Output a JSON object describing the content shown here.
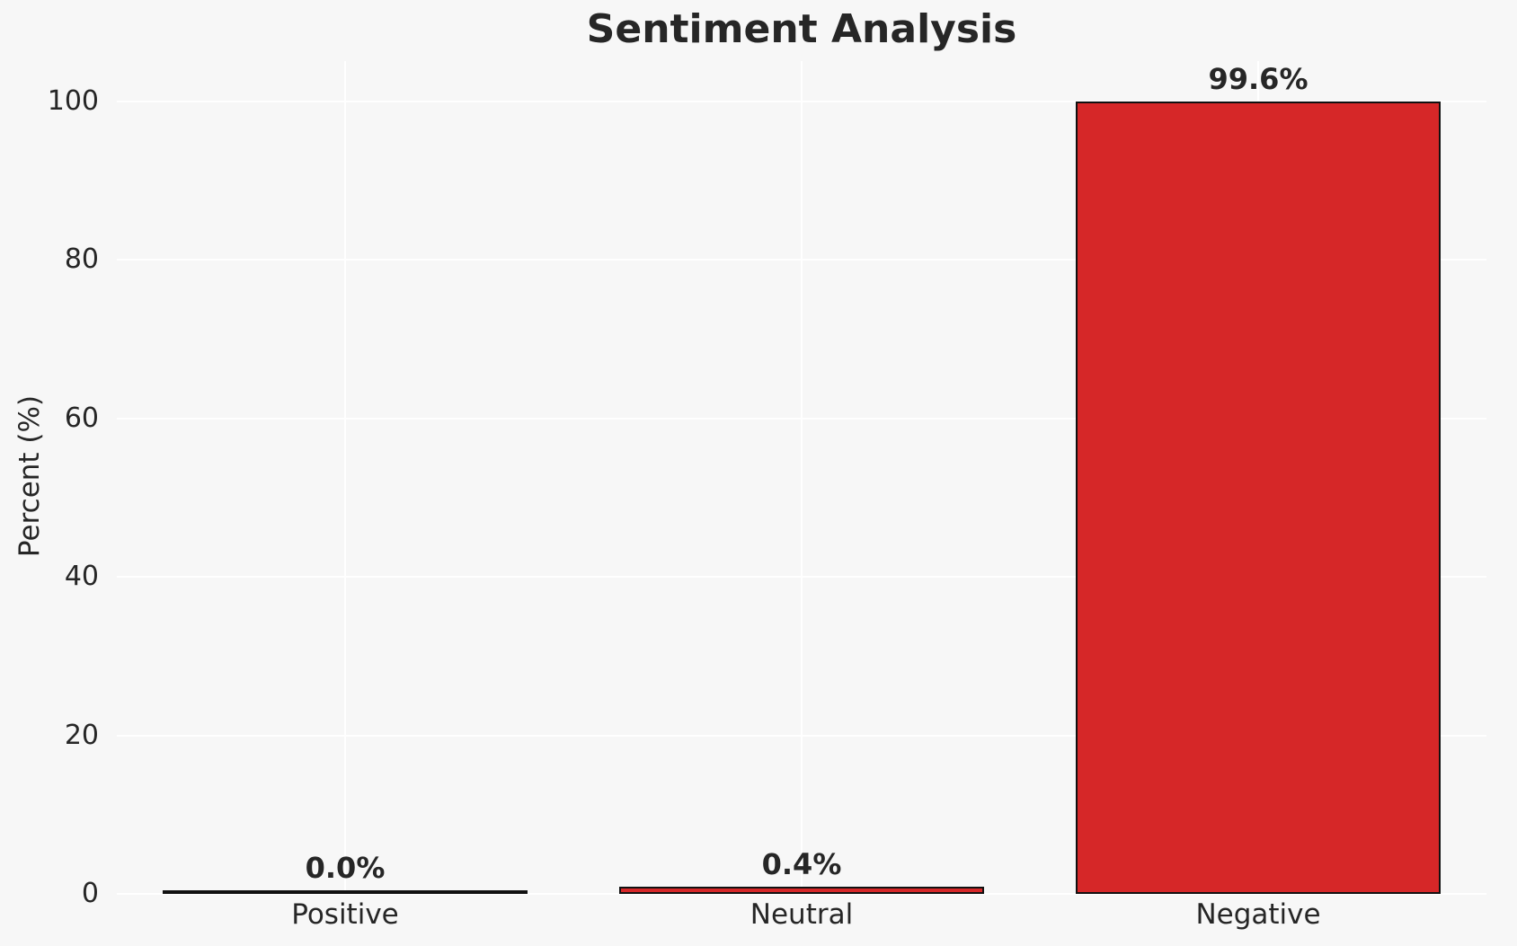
{
  "chart_data": {
    "type": "bar",
    "title": "Sentiment Analysis",
    "xlabel": "",
    "ylabel": "Percent (%)",
    "categories": [
      "Positive",
      "Neutral",
      "Negative"
    ],
    "values": [
      0.0,
      0.4,
      99.6
    ],
    "value_labels": [
      "0.0%",
      "0.4%",
      "99.6%"
    ],
    "yticks": [
      0,
      20,
      40,
      60,
      80,
      100
    ],
    "ytick_labels": [
      "0",
      "20",
      "40",
      "60",
      "80",
      "100"
    ],
    "ylim": [
      0,
      105
    ],
    "grid": true,
    "legend": "none",
    "colors": {
      "bar_fill": "#d62728",
      "bar_edge": "#111111",
      "background": "#f7f7f7",
      "gridline": "#ffffff",
      "text": "#262626"
    }
  }
}
